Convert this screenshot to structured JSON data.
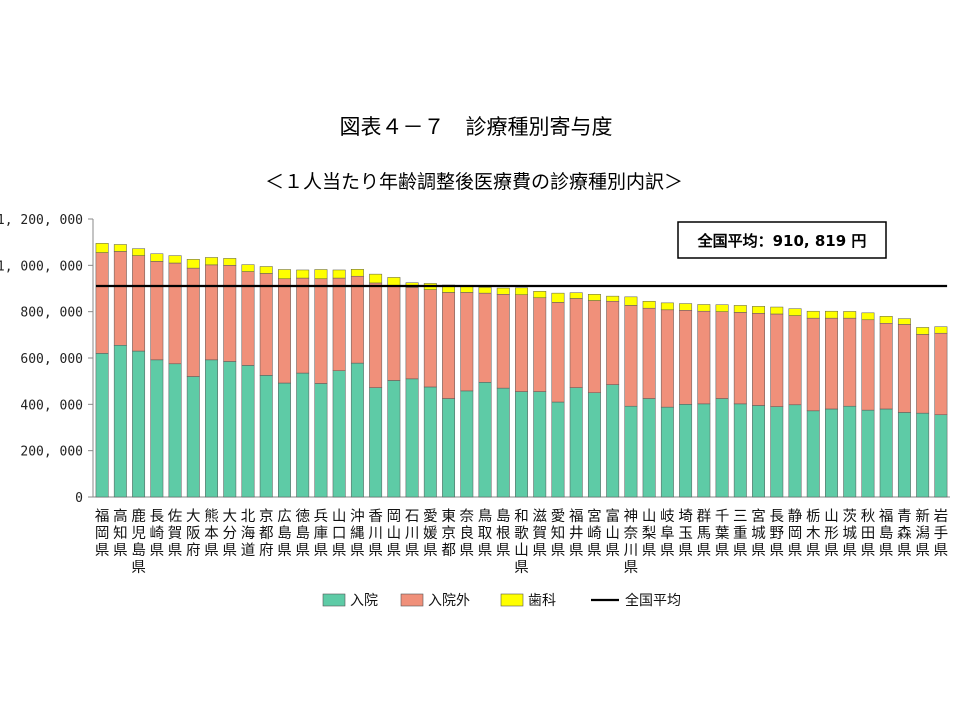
{
  "chart_data": {
    "type": "bar",
    "stacked": true,
    "title": "図表４－７　診療種別寄与度",
    "subtitle": "＜１人当たり年齢調整後医療費の診療種別内訳＞",
    "ylim": [
      0,
      1200000
    ],
    "yticks": [
      "0",
      "200, 000",
      "400, 000",
      "600, 000",
      "800, 000",
      "1, 000, 000",
      "1, 200, 000"
    ],
    "ytick_values": [
      0,
      200000,
      400000,
      600000,
      800000,
      1000000,
      1200000
    ],
    "grid": false,
    "legend_position": "bottom",
    "categories": [
      "福岡県",
      "高知県",
      "鹿児島県",
      "長崎県",
      "佐賀県",
      "大阪府",
      "熊本県",
      "大分県",
      "北海道",
      "京都府",
      "広島県",
      "徳島県",
      "兵庫県",
      "山口県",
      "沖縄県",
      "香川県",
      "岡山県",
      "石川県",
      "愛媛県",
      "東京都",
      "奈良県",
      "鳥取県",
      "島根県",
      "和歌山県",
      "滋賀県",
      "愛知県",
      "福井県",
      "宮崎県",
      "富山県",
      "神奈川県",
      "山梨県",
      "岐阜県",
      "埼玉県",
      "群馬県",
      "千葉県",
      "三重県",
      "宮城県",
      "長野県",
      "静岡県",
      "栃木県",
      "山形県",
      "茨城県",
      "秋田県",
      "福島県",
      "青森県",
      "新潟県",
      "岩手県"
    ],
    "series": [
      {
        "name": "入院",
        "color": "#5ecba6",
        "values": [
          620000,
          655000,
          630000,
          592000,
          575000,
          520000,
          592000,
          585000,
          568000,
          525000,
          492000,
          535000,
          490000,
          545000,
          578000,
          472000,
          503000,
          510000,
          475000,
          425000,
          458000,
          495000,
          470000,
          455000,
          455000,
          410000,
          472000,
          450000,
          485000,
          392000,
          425000,
          388000,
          400000,
          402000,
          425000,
          402000,
          395000,
          390000,
          398000,
          372000,
          380000,
          392000,
          375000,
          380000,
          365000,
          362000,
          355000
        ]
      },
      {
        "name": "入院外",
        "color": "#f0907a",
        "values": [
          435000,
          405000,
          412000,
          425000,
          435000,
          468000,
          410000,
          415000,
          405000,
          440000,
          450000,
          410000,
          452000,
          400000,
          375000,
          452000,
          410000,
          395000,
          420000,
          458000,
          425000,
          385000,
          405000,
          418000,
          405000,
          430000,
          385000,
          398000,
          360000,
          435000,
          390000,
          420000,
          406000,
          400000,
          375000,
          395000,
          398000,
          400000,
          385000,
          400000,
          392000,
          380000,
          390000,
          370000,
          380000,
          340000,
          352000
        ]
      },
      {
        "name": "歯科",
        "color": "#ffff00",
        "values": [
          40000,
          30000,
          30000,
          33000,
          32000,
          38000,
          32000,
          30000,
          30000,
          30000,
          40000,
          35000,
          40000,
          35000,
          30000,
          38000,
          35000,
          20000,
          27000,
          32000,
          30000,
          25000,
          27000,
          30000,
          28000,
          40000,
          25000,
          27000,
          22000,
          37000,
          30000,
          30000,
          29000,
          29000,
          30000,
          30000,
          30000,
          30000,
          30000,
          30000,
          30000,
          29000,
          30000,
          30000,
          25000,
          30000,
          28000
        ]
      }
    ],
    "average": {
      "name": "全国平均",
      "value": 910819,
      "color": "#000000"
    },
    "annotation": "全国平均：910, 819 円"
  }
}
